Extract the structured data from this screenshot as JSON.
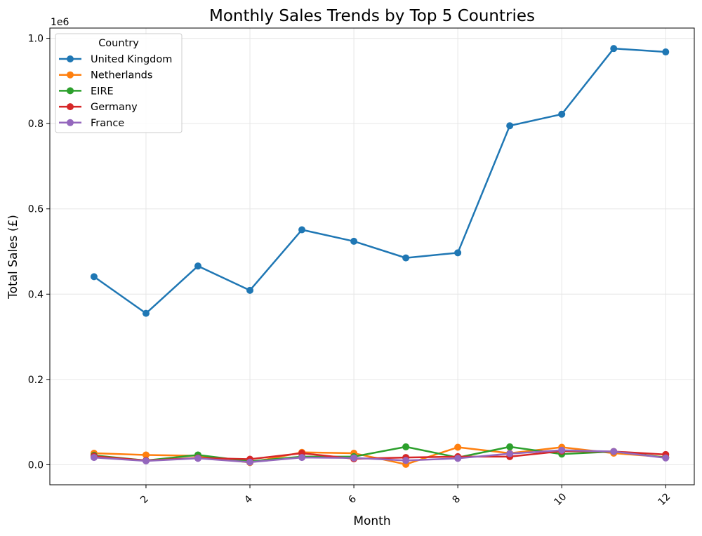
{
  "chart_data": {
    "type": "line",
    "title": "Monthly Sales Trends by Top 5 Countries",
    "xlabel": "Month",
    "ylabel": "Total Sales (£)",
    "y_offset_label": "1e6",
    "x": [
      1,
      2,
      3,
      4,
      5,
      6,
      7,
      8,
      9,
      10,
      11,
      12
    ],
    "xlim": [
      0.15,
      12.55
    ],
    "ylim": [
      -0.047,
      1.024
    ],
    "x_ticks": [
      2,
      4,
      6,
      8,
      10,
      12
    ],
    "x_tick_labels": [
      "2",
      "4",
      "6",
      "8",
      "10",
      "12"
    ],
    "y_ticks": [
      0.0,
      0.2,
      0.4,
      0.6,
      0.8,
      1.0
    ],
    "y_tick_labels": [
      "0.0",
      "0.2",
      "0.4",
      "0.6",
      "0.8",
      "1.0"
    ],
    "grid": true,
    "legend": {
      "title": "Country",
      "placement": "top-left"
    },
    "series": [
      {
        "name": "United Kingdom",
        "color": "#1f77b4",
        "values": [
          0.441,
          0.355,
          0.466,
          0.409,
          0.551,
          0.524,
          0.485,
          0.497,
          0.795,
          0.822,
          0.976,
          0.968
        ]
      },
      {
        "name": "Netherlands",
        "color": "#ff7f0e",
        "values": [
          0.027,
          0.023,
          0.021,
          0.005,
          0.029,
          0.027,
          0.001,
          0.041,
          0.027,
          0.041,
          0.027,
          0.018
        ]
      },
      {
        "name": "EIRE",
        "color": "#2ca02c",
        "values": [
          0.022,
          0.01,
          0.023,
          0.008,
          0.019,
          0.019,
          0.042,
          0.017,
          0.042,
          0.025,
          0.031,
          0.017
        ]
      },
      {
        "name": "Germany",
        "color": "#d62728",
        "values": [
          0.02,
          0.01,
          0.016,
          0.013,
          0.027,
          0.014,
          0.017,
          0.019,
          0.019,
          0.032,
          0.031,
          0.024
        ]
      },
      {
        "name": "France",
        "color": "#9467bd",
        "values": [
          0.017,
          0.009,
          0.015,
          0.006,
          0.017,
          0.016,
          0.01,
          0.015,
          0.026,
          0.034,
          0.031,
          0.016
        ]
      }
    ]
  }
}
